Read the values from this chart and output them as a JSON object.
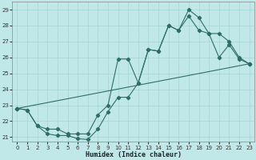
{
  "title": "",
  "xlabel": "Humidex (Indice chaleur)",
  "bg_color": "#c0e8e8",
  "line_color": "#2e6e68",
  "grid_color": "#a8d4d4",
  "xlim": [
    -0.5,
    23.5
  ],
  "ylim": [
    20.7,
    29.5
  ],
  "yticks": [
    21,
    22,
    23,
    24,
    25,
    26,
    27,
    28,
    29
  ],
  "xticks": [
    0,
    1,
    2,
    3,
    4,
    5,
    6,
    7,
    8,
    9,
    10,
    11,
    12,
    13,
    14,
    15,
    16,
    17,
    18,
    19,
    20,
    21,
    22,
    23
  ],
  "line1_x": [
    0,
    1,
    2,
    3,
    4,
    5,
    6,
    7,
    8,
    9,
    10,
    11,
    12,
    13,
    14,
    15,
    16,
    17,
    18,
    19,
    20,
    21,
    22,
    23
  ],
  "line1_y": [
    22.8,
    22.7,
    21.7,
    21.2,
    21.1,
    21.1,
    20.9,
    20.85,
    21.5,
    22.6,
    23.5,
    23.5,
    24.4,
    26.5,
    26.4,
    28.0,
    27.7,
    28.6,
    27.7,
    27.5,
    26.0,
    26.8,
    25.9,
    25.6
  ],
  "line2_x": [
    0,
    1,
    2,
    3,
    4,
    5,
    6,
    7,
    8,
    9,
    10,
    11,
    12,
    13,
    14,
    15,
    16,
    17,
    18,
    19,
    20,
    21,
    22,
    23
  ],
  "line2_y": [
    22.8,
    22.7,
    21.7,
    21.5,
    21.5,
    21.2,
    21.2,
    21.2,
    22.4,
    23.0,
    25.9,
    25.9,
    24.4,
    26.5,
    26.4,
    28.0,
    27.7,
    29.0,
    28.5,
    27.5,
    27.5,
    27.0,
    26.0,
    25.6
  ],
  "line3_x": [
    0,
    23
  ],
  "line3_y": [
    22.8,
    25.6
  ]
}
